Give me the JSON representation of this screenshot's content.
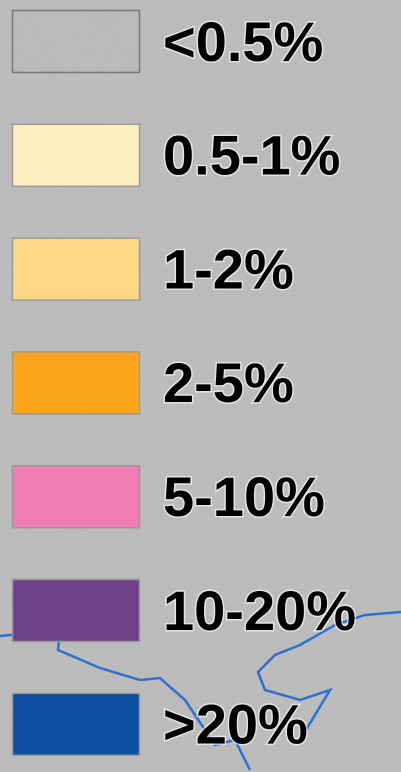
{
  "legend": {
    "items": [
      {
        "label": "<0.5%",
        "color": "#b9b9b9"
      },
      {
        "label": "0.5-1%",
        "color": "#fff0c3"
      },
      {
        "label": "1-2%",
        "color": "#ffd887"
      },
      {
        "label": "2-5%",
        "color": "#ffa51c"
      },
      {
        "label": "5-10%",
        "color": "#f07cb6"
      },
      {
        "label": "10-20%",
        "color": "#6f418a"
      },
      {
        "label": ">20%",
        "color": "#0f4fa1"
      }
    ]
  }
}
